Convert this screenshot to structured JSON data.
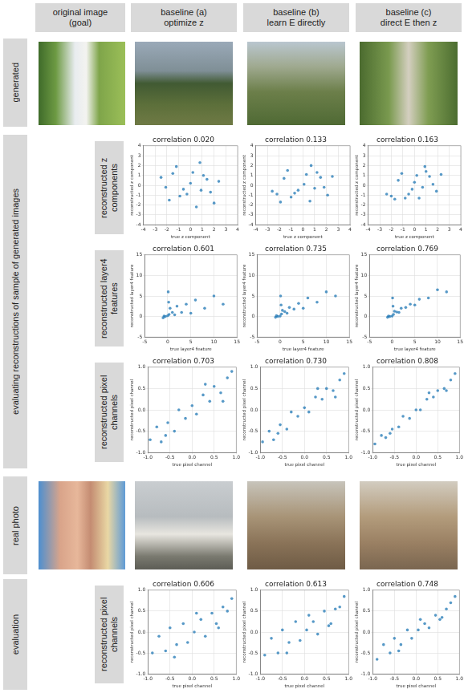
{
  "column_headers": [
    [
      "original image",
      "(goal)"
    ],
    [
      "baseline (a)",
      "optimize z"
    ],
    [
      "baseline (b)",
      "learn E directly"
    ],
    [
      "baseline (c)",
      "direct E then z"
    ]
  ],
  "row_labels": [
    "generated",
    "real photo",
    "evaluation"
  ],
  "group_label": "evaluating reconstructions of sample of generated images",
  "plot_row_labels": [
    "reconstructed z components",
    "reconstructed layer4 features",
    "reconstructed pixel channels",
    "reconstructed pixel channels"
  ],
  "chart_data": [
    {
      "type": "scatter",
      "title": "correlation 0.020",
      "x_label": "true z component",
      "y_label": "reconstructed z component",
      "xlim": [
        -4,
        4
      ],
      "ylim": [
        -4,
        4
      ],
      "xticks": [
        -4,
        -3,
        -2,
        -1,
        0,
        1,
        2,
        3,
        4
      ],
      "yticks": [
        -4,
        -3,
        -2,
        -1,
        0,
        1,
        2,
        3,
        4
      ],
      "grid": true,
      "series": [
        {
          "color": "#1f77b4",
          "x": [
            -2.5,
            -1.8,
            -1.2,
            -0.6,
            0,
            0.5,
            1.1,
            1.7,
            2.4,
            -0.9,
            0.8,
            -2.1,
            2.0,
            0.2,
            -0.3,
            1.4,
            -1.5,
            0.9
          ],
          "values": [
            0.8,
            -1.5,
            1.9,
            -0.4,
            0.2,
            -2.2,
            1.0,
            -0.7,
            0.4,
            -1.1,
            2.3,
            -0.2,
            -1.8,
            1.3,
            -0.9,
            0.6,
            1.2,
            -0.5
          ]
        }
      ]
    },
    {
      "type": "scatter",
      "title": "correlation 0.133",
      "x_label": "true z component",
      "y_label": "reconstructed z component",
      "xlim": [
        -4,
        4
      ],
      "ylim": [
        -4,
        4
      ],
      "xticks": [
        -4,
        -3,
        -2,
        -1,
        0,
        1,
        2,
        3,
        4
      ],
      "yticks": [
        -4,
        -3,
        -2,
        -1,
        0,
        1,
        2,
        3,
        4
      ],
      "grid": true,
      "series": [
        {
          "color": "#1f77b4",
          "x": [
            -2.6,
            -1.9,
            -1.3,
            -0.7,
            0.1,
            0.6,
            1.2,
            1.8,
            2.5,
            -1.0,
            0.7,
            -2.2,
            2.1,
            0.3,
            -0.4,
            1.5,
            -1.6,
            1.0
          ],
          "values": [
            -0.6,
            -1.7,
            1.5,
            -0.8,
            0.1,
            -1.6,
            1.3,
            -0.2,
            0.9,
            -1.2,
            2.0,
            -0.9,
            -1.0,
            1.1,
            -0.5,
            0.8,
            0.7,
            -0.3
          ]
        }
      ]
    },
    {
      "type": "scatter",
      "title": "correlation 0.163",
      "x_label": "true z component",
      "y_label": "reconstructed z component",
      "xlim": [
        -4,
        4
      ],
      "ylim": [
        -4,
        4
      ],
      "xticks": [
        -4,
        -3,
        -2,
        -1,
        0,
        1,
        2,
        3,
        4
      ],
      "yticks": [
        -4,
        -3,
        -2,
        -1,
        0,
        1,
        2,
        3,
        4
      ],
      "grid": true,
      "series": [
        {
          "color": "#1f77b4",
          "x": [
            -2.4,
            -1.7,
            -1.1,
            -0.5,
            0,
            0.4,
            1.0,
            1.6,
            2.3,
            -0.8,
            0.9,
            -2.0,
            1.9,
            0.2,
            -0.2,
            1.3,
            -1.4,
            0.7
          ],
          "values": [
            -0.9,
            -1.4,
            1.2,
            -0.9,
            0.3,
            -1.3,
            1.4,
            0.1,
            1.1,
            -1.3,
            1.9,
            -1.1,
            -0.6,
            1.0,
            -0.4,
            0.9,
            0.5,
            -0.2
          ]
        }
      ]
    },
    {
      "type": "scatter",
      "title": "correlation 0.601",
      "x_label": "true layer4 feature",
      "y_label": "reconstructed layer4 feature",
      "xlim": [
        -5,
        15
      ],
      "ylim": [
        -5,
        15
      ],
      "xticks": [
        -5,
        0,
        5,
        10,
        15
      ],
      "yticks": [
        -5,
        0,
        5,
        10,
        15
      ],
      "grid": true,
      "series": [
        {
          "color": "#1f77b4",
          "x": [
            -1.0,
            -0.5,
            0,
            0.3,
            0.5,
            1.0,
            1.5,
            2.0,
            3.0,
            4.0,
            5.0,
            6.0,
            8.0,
            10.0,
            12.0,
            0.2,
            -0.8,
            0.1
          ],
          "values": [
            -0.3,
            0,
            0.2,
            0.5,
            2.0,
            1.0,
            0.4,
            2.5,
            1.0,
            3.0,
            0.8,
            4.0,
            2.0,
            5.0,
            3.0,
            3.5,
            0.1,
            6.0
          ]
        }
      ]
    },
    {
      "type": "scatter",
      "title": "correlation 0.735",
      "x_label": "true layer4 feature",
      "y_label": "reconstructed layer4 feature",
      "xlim": [
        -5,
        15
      ],
      "ylim": [
        -5,
        15
      ],
      "xticks": [
        -5,
        0,
        5,
        10,
        15
      ],
      "yticks": [
        -5,
        0,
        5,
        10,
        15
      ],
      "grid": true,
      "series": [
        {
          "color": "#1f77b4",
          "x": [
            -1.0,
            -0.5,
            0,
            0.3,
            0.5,
            1.0,
            1.5,
            2.0,
            3.0,
            4.0,
            5.0,
            6.0,
            8.0,
            10.0,
            12.0,
            0.2,
            -0.8,
            0.1
          ],
          "values": [
            -0.2,
            0,
            0.1,
            0.6,
            1.5,
            1.2,
            0.8,
            2.2,
            1.8,
            3.2,
            2.0,
            4.5,
            3.5,
            6.0,
            5.0,
            2.8,
            0.2,
            5.0
          ]
        }
      ]
    },
    {
      "type": "scatter",
      "title": "correlation 0.769",
      "x_label": "true layer4 feature",
      "y_label": "reconstructed layer4 feature",
      "xlim": [
        -5,
        15
      ],
      "ylim": [
        -5,
        15
      ],
      "xticks": [
        -5,
        0,
        5,
        10,
        15
      ],
      "yticks": [
        -5,
        0,
        5,
        10,
        15
      ],
      "grid": true,
      "series": [
        {
          "color": "#1f77b4",
          "x": [
            -1.0,
            -0.5,
            0,
            0.3,
            0.5,
            1.0,
            1.5,
            2.0,
            3.0,
            4.0,
            5.0,
            6.0,
            8.0,
            10.0,
            12.0,
            0.2,
            -0.8,
            0.1
          ],
          "values": [
            -0.2,
            0,
            0.1,
            0.5,
            1.3,
            1.1,
            1.0,
            2.0,
            2.2,
            3.0,
            2.8,
            4.2,
            4.5,
            6.5,
            6.0,
            2.5,
            0.1,
            4.5
          ]
        }
      ]
    },
    {
      "type": "scatter",
      "title": "correlation 0.703",
      "x_label": "true pixel channel",
      "y_label": "reconstructed pixel channel",
      "xlim": [
        -1,
        1
      ],
      "ylim": [
        -1,
        1
      ],
      "xticks": [
        {
          "value": -1,
          "label": "-1.0"
        },
        {
          "value": -0.5,
          "label": "-0.5"
        },
        {
          "value": 0,
          "label": "0.0"
        },
        {
          "value": 0.5,
          "label": "0.5"
        },
        {
          "value": 1,
          "label": "1.0"
        }
      ],
      "yticks": [
        {
          "value": -1,
          "label": "-1.0"
        },
        {
          "value": -0.5,
          "label": "-0.5"
        },
        {
          "value": 0,
          "label": "0.0"
        },
        {
          "value": 0.5,
          "label": "0.5"
        },
        {
          "value": 1,
          "label": "1.0"
        }
      ],
      "grid": true,
      "series": [
        {
          "color": "#1f77b4",
          "x": [
            -0.95,
            -0.8,
            -0.7,
            -0.55,
            -0.4,
            -0.3,
            -0.15,
            0,
            0.1,
            0.25,
            0.4,
            0.5,
            0.65,
            0.8,
            0.9,
            -0.6,
            0.3,
            0.7
          ],
          "values": [
            -0.7,
            -0.4,
            -0.75,
            -0.3,
            -0.5,
            0.0,
            -0.2,
            0.1,
            -0.1,
            0.35,
            0.2,
            0.55,
            0.4,
            0.75,
            0.9,
            -0.6,
            0.6,
            0.2
          ]
        }
      ]
    },
    {
      "type": "scatter",
      "title": "correlation 0.730",
      "x_label": "true pixel channel",
      "y_label": "reconstructed pixel channel",
      "xlim": [
        -1,
        1
      ],
      "ylim": [
        -1,
        1
      ],
      "xticks": [
        {
          "value": -1,
          "label": "-1.0"
        },
        {
          "value": -0.5,
          "label": "-0.5"
        },
        {
          "value": 0,
          "label": "0.0"
        },
        {
          "value": 0.5,
          "label": "0.5"
        },
        {
          "value": 1,
          "label": "1.0"
        }
      ],
      "yticks": [
        {
          "value": -1,
          "label": "-1.0"
        },
        {
          "value": -0.5,
          "label": "-0.5"
        },
        {
          "value": 0,
          "label": "0.0"
        },
        {
          "value": 0.5,
          "label": "0.5"
        },
        {
          "value": 1,
          "label": "1.0"
        }
      ],
      "grid": true,
      "series": [
        {
          "color": "#1f77b4",
          "x": [
            -0.95,
            -0.8,
            -0.7,
            -0.55,
            -0.4,
            -0.3,
            -0.15,
            0,
            0.1,
            0.25,
            0.4,
            0.5,
            0.65,
            0.8,
            0.9,
            -0.6,
            0.3,
            0.7
          ],
          "values": [
            -0.75,
            -0.5,
            -0.7,
            -0.35,
            -0.45,
            -0.05,
            -0.15,
            0.05,
            -0.05,
            0.3,
            0.25,
            0.5,
            0.45,
            0.7,
            0.85,
            -0.55,
            0.5,
            0.3
          ]
        }
      ]
    },
    {
      "type": "scatter",
      "title": "correlation 0.808",
      "x_label": "true pixel channel",
      "y_label": "reconstructed pixel channel",
      "xlim": [
        -1,
        1
      ],
      "ylim": [
        -1,
        1
      ],
      "xticks": [
        {
          "value": -1,
          "label": "-1.0"
        },
        {
          "value": -0.5,
          "label": "-0.5"
        },
        {
          "value": 0,
          "label": "0.0"
        },
        {
          "value": 0.5,
          "label": "0.5"
        },
        {
          "value": 1,
          "label": "1.0"
        }
      ],
      "yticks": [
        {
          "value": -1,
          "label": "-1.0"
        },
        {
          "value": -0.5,
          "label": "-0.5"
        },
        {
          "value": 0,
          "label": "0.0"
        },
        {
          "value": 0.5,
          "label": "0.5"
        },
        {
          "value": 1,
          "label": "1.0"
        }
      ],
      "grid": true,
      "series": [
        {
          "color": "#1f77b4",
          "x": [
            -0.95,
            -0.8,
            -0.7,
            -0.55,
            -0.4,
            -0.3,
            -0.15,
            0,
            0.1,
            0.25,
            0.4,
            0.5,
            0.65,
            0.8,
            0.9,
            -0.6,
            0.3,
            0.7
          ],
          "values": [
            -0.8,
            -0.6,
            -0.65,
            -0.45,
            -0.4,
            -0.15,
            -0.2,
            0.0,
            0.0,
            0.25,
            0.3,
            0.45,
            0.5,
            0.7,
            0.85,
            -0.55,
            0.4,
            0.45
          ]
        }
      ]
    },
    {
      "type": "scatter",
      "title": "correlation 0.606",
      "x_label": "true pixel channel",
      "y_label": "reconstructed pixel channel",
      "xlim": [
        -1,
        1
      ],
      "ylim": [
        -1,
        1
      ],
      "xticks": [
        {
          "value": -1,
          "label": "-1.0"
        },
        {
          "value": -0.5,
          "label": "-0.5"
        },
        {
          "value": 0,
          "label": "0.0"
        },
        {
          "value": 0.5,
          "label": "0.5"
        },
        {
          "value": 1,
          "label": "1.0"
        }
      ],
      "yticks": [
        {
          "value": -1,
          "label": "-1.0"
        },
        {
          "value": -0.5,
          "label": "-0.5"
        },
        {
          "value": 0,
          "label": "0.0"
        },
        {
          "value": 0.5,
          "label": "0.5"
        },
        {
          "value": 1,
          "label": "1.0"
        }
      ],
      "grid": true,
      "series": [
        {
          "color": "#1f77b4",
          "x": [
            -0.9,
            -0.75,
            -0.6,
            -0.5,
            -0.35,
            -0.2,
            -0.1,
            0.05,
            0.2,
            0.3,
            0.45,
            0.55,
            0.7,
            0.8,
            0.9,
            -0.4,
            0.1,
            0.6
          ],
          "values": [
            -0.5,
            -0.1,
            -0.45,
            0.1,
            -0.3,
            0.2,
            -0.25,
            0.0,
            0.3,
            -0.1,
            0.45,
            0.2,
            0.6,
            0.5,
            0.8,
            -0.6,
            0.45,
            0.1
          ]
        }
      ]
    },
    {
      "type": "scatter",
      "title": "correlation 0.613",
      "x_label": "true pixel channel",
      "y_label": "reconstructed pixel channel",
      "xlim": [
        -1,
        1
      ],
      "ylim": [
        -1,
        1
      ],
      "xticks": [
        {
          "value": -1,
          "label": "-1.0"
        },
        {
          "value": -0.5,
          "label": "-0.5"
        },
        {
          "value": 0,
          "label": "0.0"
        },
        {
          "value": 0.5,
          "label": "0.5"
        },
        {
          "value": 1,
          "label": "1.0"
        }
      ],
      "yticks": [
        {
          "value": -1,
          "label": "-1.0"
        },
        {
          "value": -0.5,
          "label": "-0.5"
        },
        {
          "value": 0,
          "label": "0.0"
        },
        {
          "value": 0.5,
          "label": "0.5"
        },
        {
          "value": 1,
          "label": "1.0"
        }
      ],
      "grid": true,
      "series": [
        {
          "color": "#1f77b4",
          "x": [
            -0.9,
            -0.75,
            -0.6,
            -0.5,
            -0.35,
            -0.2,
            -0.1,
            0.05,
            0.2,
            0.3,
            0.45,
            0.55,
            0.7,
            0.8,
            0.9,
            -0.4,
            0.1,
            0.6
          ],
          "values": [
            -0.55,
            -0.15,
            -0.5,
            0.05,
            -0.25,
            0.25,
            -0.2,
            0.05,
            0.25,
            -0.05,
            0.5,
            0.15,
            0.55,
            0.6,
            0.85,
            -0.5,
            0.4,
            0.2
          ]
        }
      ]
    },
    {
      "type": "scatter",
      "title": "correlation 0.748",
      "x_label": "true pixel channel",
      "y_label": "reconstructed pixel channel",
      "xlim": [
        -1,
        1
      ],
      "ylim": [
        -1,
        1
      ],
      "xticks": [
        {
          "value": -1,
          "label": "-1.0"
        },
        {
          "value": -0.5,
          "label": "-0.5"
        },
        {
          "value": 0,
          "label": "0.0"
        },
        {
          "value": 0.5,
          "label": "0.5"
        },
        {
          "value": 1,
          "label": "1.0"
        }
      ],
      "yticks": [
        {
          "value": -1,
          "label": "-1.0"
        },
        {
          "value": -0.5,
          "label": "-0.5"
        },
        {
          "value": 0,
          "label": "0.0"
        },
        {
          "value": 0.5,
          "label": "0.5"
        },
        {
          "value": 1,
          "label": "1.0"
        }
      ],
      "grid": true,
      "series": [
        {
          "color": "#1f77b4",
          "x": [
            -0.9,
            -0.75,
            -0.6,
            -0.5,
            -0.35,
            -0.2,
            -0.1,
            0.05,
            0.2,
            0.3,
            0.45,
            0.55,
            0.7,
            0.8,
            0.9,
            -0.4,
            0.1,
            0.6
          ],
          "values": [
            -0.65,
            -0.3,
            -0.5,
            -0.15,
            -0.3,
            0.05,
            -0.15,
            0.05,
            0.2,
            0.1,
            0.4,
            0.3,
            0.55,
            0.7,
            0.85,
            -0.45,
            0.3,
            0.35
          ]
        }
      ]
    }
  ]
}
